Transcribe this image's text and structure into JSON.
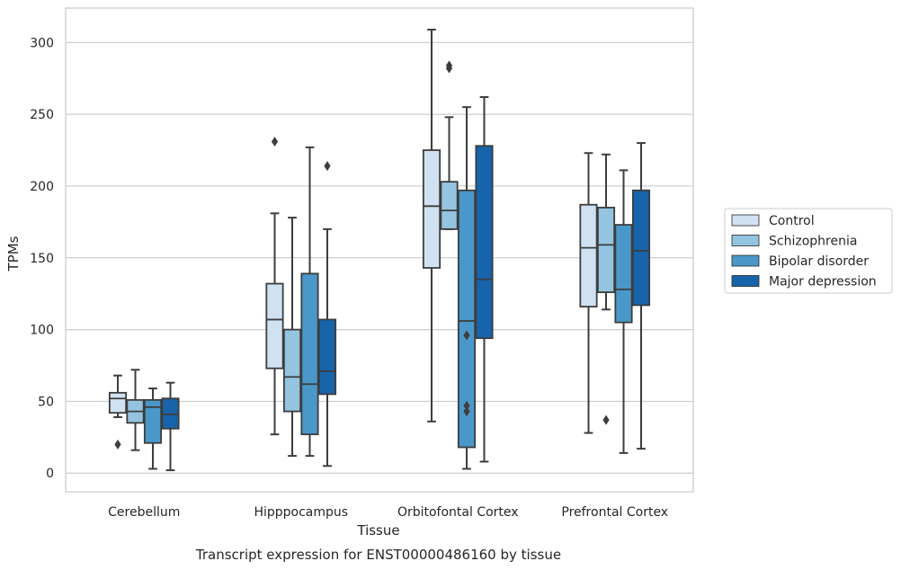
{
  "chart_data": {
    "type": "boxplot",
    "title": "",
    "caption": "Transcript expression for ENST00000486160 by tissue",
    "xlabel": "Tissue",
    "ylabel": "TPMs",
    "ylim": [
      -13,
      324
    ],
    "yticks": [
      0,
      50,
      100,
      150,
      200,
      250,
      300
    ],
    "grid": "horizontal",
    "legend_position": "right, outside plot",
    "categories": [
      "Cerebellum",
      "Hipppocampus",
      "Orbitofontal Cortex",
      "Prefrontal Cortex"
    ],
    "series": [
      {
        "name": "Control",
        "color": "#d0e1f2",
        "boxes": [
          {
            "whislo": 39,
            "q1": 42,
            "med": 52,
            "q3": 56,
            "whishi": 68,
            "fliers": [
              20
            ]
          },
          {
            "whislo": 27,
            "q1": 73,
            "med": 107,
            "q3": 132,
            "whishi": 181,
            "fliers": [
              231
            ]
          },
          {
            "whislo": 36,
            "q1": 143,
            "med": 186,
            "q3": 225,
            "whishi": 309,
            "fliers": []
          },
          {
            "whislo": 28,
            "q1": 116,
            "med": 157,
            "q3": 187,
            "whishi": 223,
            "fliers": []
          }
        ]
      },
      {
        "name": "Schizophrenia",
        "color": "#94c4df",
        "boxes": [
          {
            "whislo": 16,
            "q1": 35,
            "med": 43,
            "q3": 51,
            "whishi": 72,
            "fliers": []
          },
          {
            "whislo": 12,
            "q1": 43,
            "med": 67,
            "q3": 100,
            "whishi": 178,
            "fliers": []
          },
          {
            "whislo": 170,
            "q1": 170,
            "med": 183,
            "q3": 203,
            "whishi": 248,
            "fliers": [
              282,
              284
            ]
          },
          {
            "whislo": 114,
            "q1": 126,
            "med": 159,
            "q3": 185,
            "whishi": 222,
            "fliers": [
              37
            ]
          }
        ]
      },
      {
        "name": "Bipolar disorder",
        "color": "#4a98c9",
        "boxes": [
          {
            "whislo": 3,
            "q1": 21,
            "med": 46,
            "q3": 51,
            "whishi": 59,
            "fliers": []
          },
          {
            "whislo": 12,
            "q1": 27,
            "med": 62,
            "q3": 139,
            "whishi": 227,
            "fliers": []
          },
          {
            "whislo": 3,
            "q1": 18,
            "med": 106,
            "q3": 197,
            "whishi": 255,
            "fliers": [
              43,
              47,
              96
            ]
          },
          {
            "whislo": 14,
            "q1": 105,
            "med": 128,
            "q3": 173,
            "whishi": 211,
            "fliers": []
          }
        ]
      },
      {
        "name": "Major depression",
        "color": "#1764ab",
        "boxes": [
          {
            "whislo": 2,
            "q1": 31,
            "med": 41,
            "q3": 52,
            "whishi": 63,
            "fliers": []
          },
          {
            "whislo": 5,
            "q1": 55,
            "med": 71,
            "q3": 107,
            "whishi": 170,
            "fliers": [
              214
            ]
          },
          {
            "whislo": 8,
            "q1": 94,
            "med": 135,
            "q3": 228,
            "whishi": 262,
            "fliers": []
          },
          {
            "whislo": 17,
            "q1": 117,
            "med": 155,
            "q3": 197,
            "whishi": 230,
            "fliers": []
          }
        ]
      }
    ]
  }
}
